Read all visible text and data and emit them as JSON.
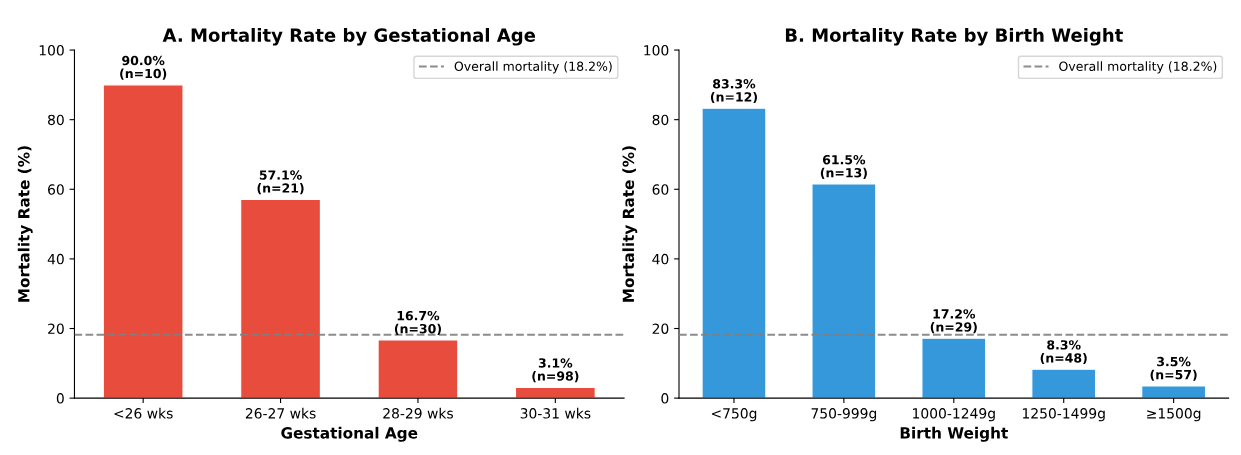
{
  "chart_data": [
    {
      "type": "bar",
      "title": "A. Mortality Rate by Gestational Age",
      "xlabel": "Gestational Age",
      "ylabel": "Mortality Rate (%)",
      "categories": [
        "<26 wks",
        "26-27 wks",
        "28-29 wks",
        "30-31 wks"
      ],
      "values": [
        90.0,
        57.1,
        16.7,
        3.1
      ],
      "color": "#e74c3c",
      "value_labels": [
        "90.0%\n(n=10)",
        "57.1%\n(n=21)",
        "16.7%\n(n=30)",
        "3.1%\n(n=98)"
      ],
      "ylim": [
        0,
        100
      ],
      "yticks": [
        0,
        20,
        40,
        60,
        80,
        100
      ],
      "grid": false,
      "legend": "top right",
      "ref_lines": [
        {
          "axis": "y",
          "value": 18.2,
          "label": "Overall mortality (18.2%)",
          "color": "#808080",
          "line_style": "dashed"
        }
      ]
    },
    {
      "type": "bar",
      "title": "B. Mortality Rate by Birth Weight",
      "xlabel": "Birth Weight",
      "ylabel": "Mortality Rate (%)",
      "categories": [
        "<750g",
        "750-999g",
        "1000-1249g",
        "1250-1499g",
        "≥1500g"
      ],
      "values": [
        83.3,
        61.5,
        17.2,
        8.3,
        3.5
      ],
      "color": "#3498db",
      "value_labels": [
        "83.3%\n(n=12)",
        "61.5%\n(n=13)",
        "17.2%\n(n=29)",
        "8.3%\n(n=48)",
        "3.5%\n(n=57)"
      ],
      "ylim": [
        0,
        100
      ],
      "yticks": [
        0,
        20,
        40,
        60,
        80,
        100
      ],
      "grid": false,
      "legend": "top right",
      "ref_lines": [
        {
          "axis": "y",
          "value": 18.2,
          "label": "Overall mortality (18.2%)",
          "color": "#808080",
          "line_style": "dashed"
        }
      ]
    }
  ]
}
